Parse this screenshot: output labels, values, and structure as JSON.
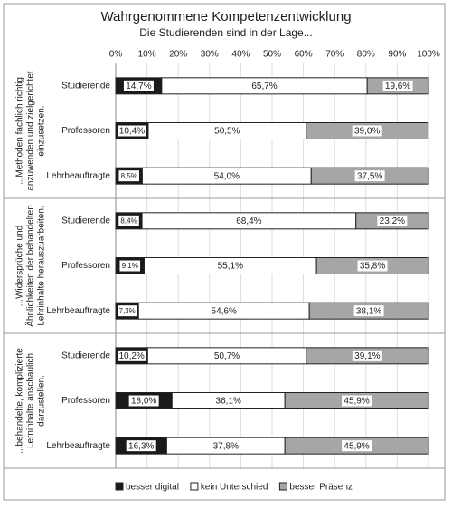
{
  "chart_data": {
    "type": "stacked-bar-horizontal",
    "title": "Wahrgenommene Kompetenzentwicklung",
    "subtitle": "Die Studierenden sind in der Lage...",
    "groups": [
      {
        "lines": [
          "...Methoden fachlich richtig",
          "anzuwenden und zielgerichtet",
          "einzusetzen."
        ]
      },
      {
        "lines": [
          "...Widersprüche und",
          "Ähnlichkeiten der behandelten",
          "Lehrinhalte herauszuarbeiten."
        ]
      },
      {
        "lines": [
          "...behandelte, komplizierte",
          "Lerninhalte anschaulich",
          "darzustellen."
        ]
      }
    ],
    "categories": [
      "Studierende",
      "Professoren",
      "Lehrbeauftragte",
      "Studierende",
      "Professoren",
      "Lehrbeauftragte",
      "Studierende",
      "Professoren",
      "Lehrbeauftragte"
    ],
    "series": [
      {
        "name": "besser digital",
        "color": "#1a1a1a",
        "values": [
          14.7,
          10.4,
          8.5,
          8.4,
          9.1,
          7.3,
          10.2,
          18.0,
          16.3
        ],
        "value_labels": [
          "14,7%",
          "10,4%",
          "8,5%",
          "8,4%",
          "9,1%",
          "7,3%",
          "10,2%",
          "18,0%",
          "16,3%"
        ]
      },
      {
        "name": "kein Unterschied",
        "color": "#ffffff",
        "values": [
          65.7,
          50.5,
          54.0,
          68.4,
          55.1,
          54.6,
          50.7,
          36.1,
          37.8
        ],
        "value_labels": [
          "65,7%",
          "50,5%",
          "54,0%",
          "68,4%",
          "55,1%",
          "54,6%",
          "50,7%",
          "36,1%",
          "37,8%"
        ]
      },
      {
        "name": "besser Präsenz",
        "color": "#a6a6a6",
        "values": [
          19.6,
          39.0,
          37.5,
          23.2,
          35.8,
          38.1,
          39.1,
          45.9,
          45.9
        ],
        "value_labels": [
          "19,6%",
          "39,0%",
          "37,5%",
          "23,2%",
          "35,8%",
          "38,1%",
          "39,1%",
          "45,9%",
          "45,9%"
        ]
      }
    ],
    "xlim": [
      0,
      100
    ],
    "xticks": [
      {
        "value": 0,
        "label": "0%"
      },
      {
        "value": 10,
        "label": "10%"
      },
      {
        "value": 20,
        "label": "20%"
      },
      {
        "value": 30,
        "label": "30%"
      },
      {
        "value": 40,
        "label": "40%"
      },
      {
        "value": 50,
        "label": "50%"
      },
      {
        "value": 60,
        "label": "60%"
      },
      {
        "value": 70,
        "label": "70%"
      },
      {
        "value": 80,
        "label": "80%"
      },
      {
        "value": 90,
        "label": "90%"
      },
      {
        "value": 100,
        "label": "100%"
      }
    ],
    "grid": true,
    "legend": "bottom"
  }
}
